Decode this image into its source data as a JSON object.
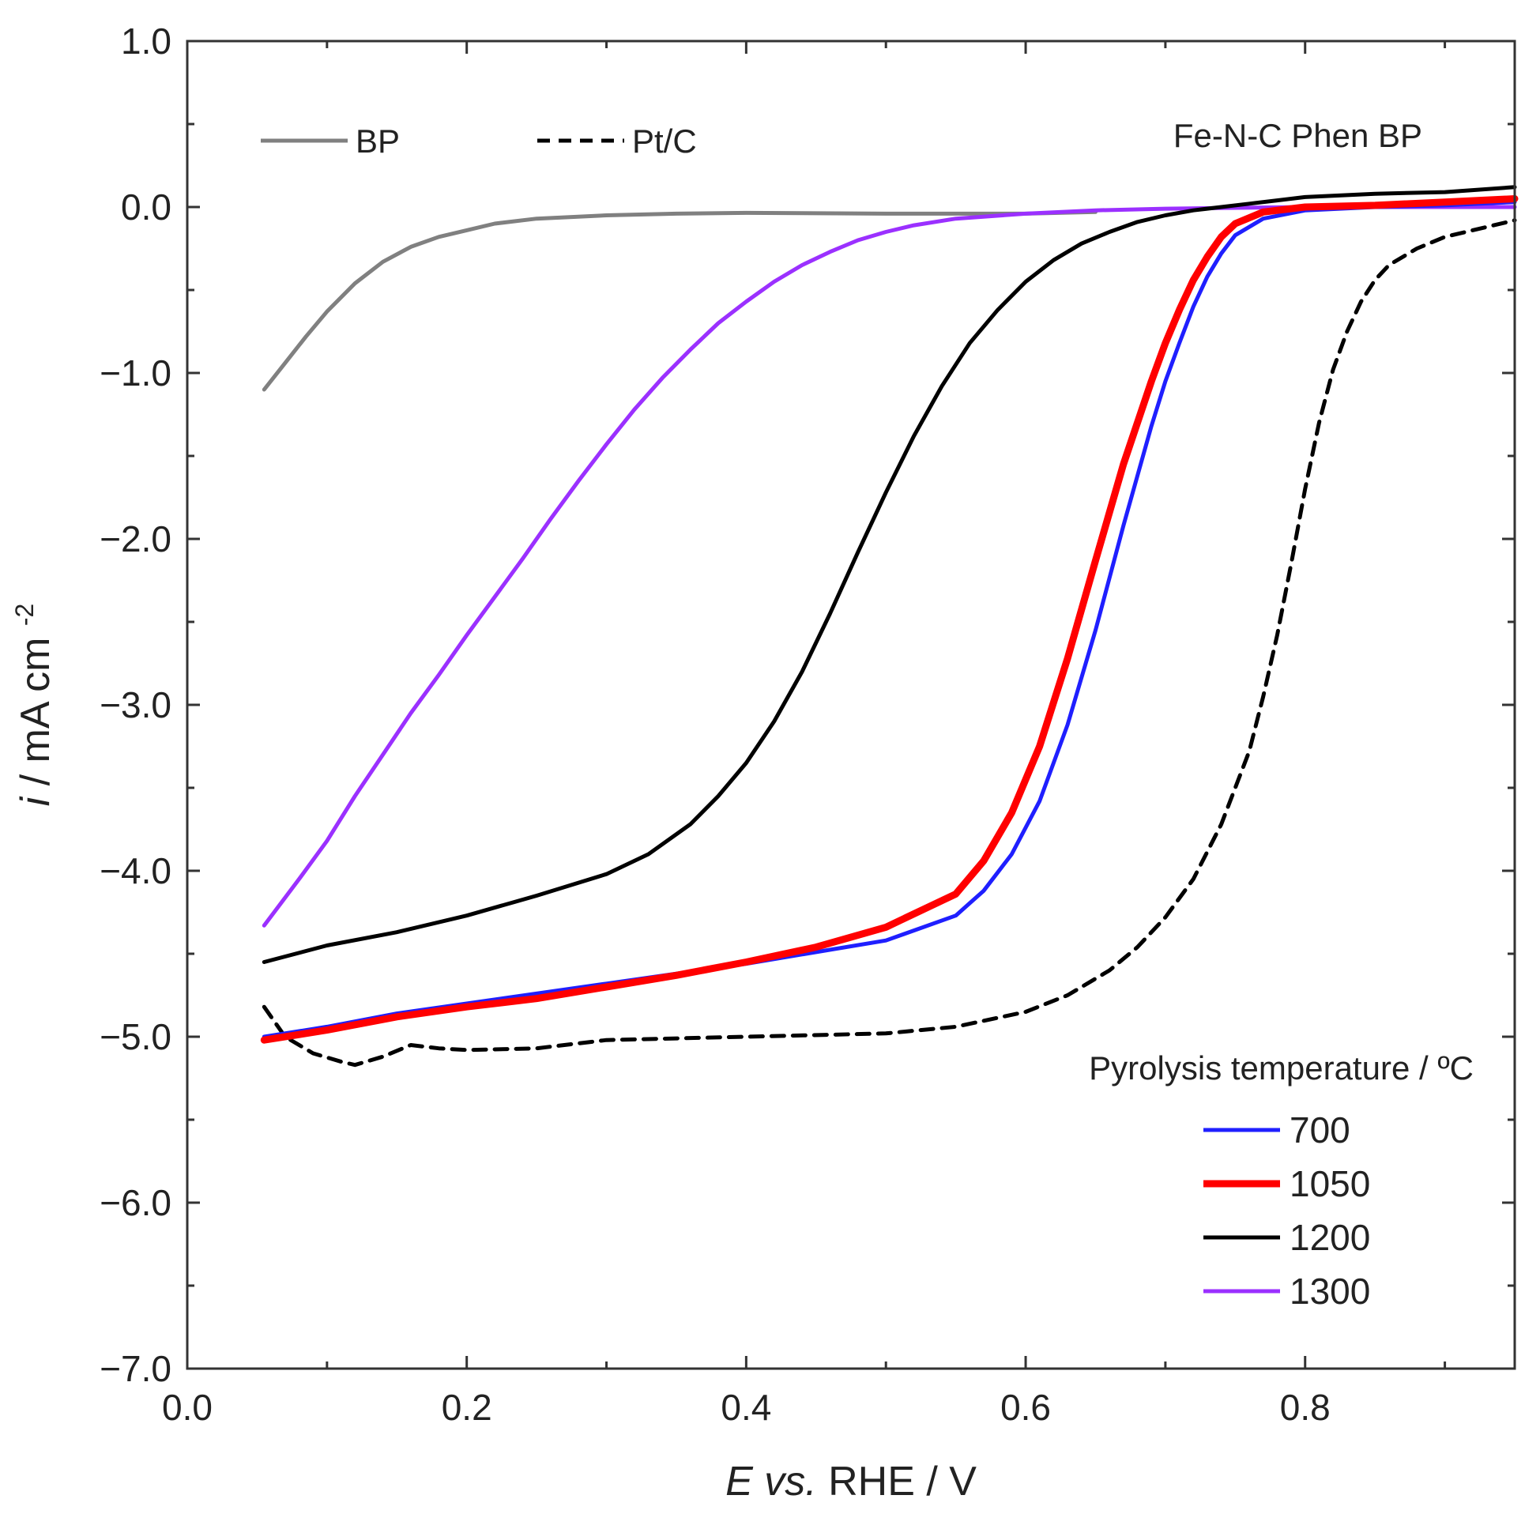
{
  "chart_data": {
    "type": "line",
    "title": "",
    "annotation": "Fe-N-C Phen BP",
    "xlabel": {
      "italic": "E",
      "italic2": "vs.",
      "rest": " RHE / V"
    },
    "ylabel": {
      "italic": "i",
      "rest": " / mA cm",
      "sup": "-2"
    },
    "xlim": [
      0.0,
      0.95
    ],
    "ylim": [
      -7.0,
      1.0
    ],
    "x_ticks": [
      {
        "value": 0.0,
        "label": "0.0"
      },
      {
        "value": 0.2,
        "label": "0.2"
      },
      {
        "value": 0.4,
        "label": "0.4"
      },
      {
        "value": 0.6,
        "label": "0.6"
      },
      {
        "value": 0.8,
        "label": "0.8"
      }
    ],
    "y_ticks": [
      {
        "value": 1.0,
        "label": "1.0"
      },
      {
        "value": 0.0,
        "label": "0.0"
      },
      {
        "value": -1.0,
        "label": "−1.0"
      },
      {
        "value": -2.0,
        "label": "−2.0"
      },
      {
        "value": -3.0,
        "label": "−3.0"
      },
      {
        "value": -4.0,
        "label": "−4.0"
      },
      {
        "value": -5.0,
        "label": "−5.0"
      },
      {
        "value": -6.0,
        "label": "−6.0"
      },
      {
        "value": -7.0,
        "label": "−7.0"
      }
    ],
    "reference_legend": [
      {
        "label": "BP",
        "series": "BP"
      },
      {
        "label": "Pt/C",
        "series": "Pt/C"
      }
    ],
    "legend_title": "Pyrolysis temperature / ºC",
    "legend": [
      {
        "label": "700",
        "series": "700"
      },
      {
        "label": "1050",
        "series": "1050"
      },
      {
        "label": "1200",
        "series": "1200"
      },
      {
        "label": "1300",
        "series": "1300"
      }
    ],
    "series": [
      {
        "name": "BP",
        "color": "#808080",
        "dash": "solid",
        "width": "medium",
        "x": [
          0.055,
          0.07,
          0.085,
          0.1,
          0.12,
          0.14,
          0.16,
          0.18,
          0.2,
          0.22,
          0.25,
          0.3,
          0.35,
          0.4,
          0.5,
          0.6,
          0.65
        ],
        "y": [
          -1.1,
          -0.94,
          -0.78,
          -0.63,
          -0.46,
          -0.33,
          -0.24,
          -0.18,
          -0.14,
          -0.1,
          -0.07,
          -0.05,
          -0.04,
          -0.035,
          -0.04,
          -0.04,
          -0.03
        ]
      },
      {
        "name": "Pt/C",
        "color": "#000000",
        "dash": "dashed",
        "width": "medium",
        "x": [
          0.055,
          0.07,
          0.09,
          0.11,
          0.12,
          0.14,
          0.16,
          0.18,
          0.2,
          0.25,
          0.3,
          0.4,
          0.5,
          0.55,
          0.6,
          0.63,
          0.66,
          0.68,
          0.7,
          0.72,
          0.74,
          0.76,
          0.77,
          0.78,
          0.79,
          0.8,
          0.81,
          0.82,
          0.83,
          0.84,
          0.85,
          0.86,
          0.88,
          0.9,
          0.95
        ],
        "y": [
          -4.82,
          -5.0,
          -5.1,
          -5.15,
          -5.17,
          -5.12,
          -5.05,
          -5.07,
          -5.08,
          -5.07,
          -5.02,
          -5.0,
          -4.98,
          -4.94,
          -4.85,
          -4.75,
          -4.6,
          -4.46,
          -4.28,
          -4.05,
          -3.72,
          -3.28,
          -2.95,
          -2.58,
          -2.15,
          -1.7,
          -1.3,
          -0.98,
          -0.75,
          -0.57,
          -0.44,
          -0.35,
          -0.25,
          -0.18,
          -0.08
        ]
      },
      {
        "name": "700",
        "color": "#1f1fff",
        "dash": "solid",
        "width": "medium",
        "x": [
          0.055,
          0.1,
          0.15,
          0.2,
          0.25,
          0.3,
          0.35,
          0.4,
          0.45,
          0.5,
          0.55,
          0.57,
          0.59,
          0.61,
          0.63,
          0.65,
          0.67,
          0.69,
          0.7,
          0.71,
          0.72,
          0.73,
          0.74,
          0.75,
          0.77,
          0.8,
          0.85,
          0.9,
          0.95
        ],
        "y": [
          -5.0,
          -4.94,
          -4.86,
          -4.8,
          -4.74,
          -4.68,
          -4.62,
          -4.56,
          -4.49,
          -4.42,
          -4.27,
          -4.12,
          -3.9,
          -3.58,
          -3.12,
          -2.55,
          -1.92,
          -1.32,
          -1.05,
          -0.82,
          -0.6,
          -0.42,
          -0.28,
          -0.17,
          -0.07,
          -0.02,
          0.0,
          0.01,
          0.03
        ]
      },
      {
        "name": "1050",
        "color": "#ff0000",
        "dash": "solid",
        "width": "thick",
        "x": [
          0.055,
          0.1,
          0.15,
          0.2,
          0.25,
          0.3,
          0.35,
          0.4,
          0.45,
          0.5,
          0.55,
          0.57,
          0.59,
          0.61,
          0.63,
          0.65,
          0.67,
          0.69,
          0.7,
          0.71,
          0.72,
          0.73,
          0.74,
          0.75,
          0.77,
          0.8,
          0.85,
          0.9,
          0.95
        ],
        "y": [
          -5.02,
          -4.96,
          -4.88,
          -4.82,
          -4.77,
          -4.7,
          -4.63,
          -4.55,
          -4.46,
          -4.34,
          -4.14,
          -3.94,
          -3.65,
          -3.25,
          -2.72,
          -2.13,
          -1.55,
          -1.05,
          -0.82,
          -0.62,
          -0.44,
          -0.3,
          -0.18,
          -0.1,
          -0.03,
          0.0,
          0.01,
          0.03,
          0.05
        ]
      },
      {
        "name": "1200",
        "color": "#000000",
        "dash": "solid",
        "width": "medium",
        "x": [
          0.055,
          0.1,
          0.15,
          0.2,
          0.25,
          0.3,
          0.33,
          0.36,
          0.38,
          0.4,
          0.42,
          0.44,
          0.46,
          0.48,
          0.5,
          0.52,
          0.54,
          0.56,
          0.58,
          0.6,
          0.62,
          0.64,
          0.66,
          0.68,
          0.7,
          0.72,
          0.74,
          0.76,
          0.78,
          0.8,
          0.85,
          0.9,
          0.95
        ],
        "y": [
          -4.55,
          -4.45,
          -4.37,
          -4.27,
          -4.15,
          -4.02,
          -3.9,
          -3.72,
          -3.55,
          -3.35,
          -3.1,
          -2.8,
          -2.45,
          -2.08,
          -1.72,
          -1.38,
          -1.08,
          -0.82,
          -0.62,
          -0.45,
          -0.32,
          -0.22,
          -0.15,
          -0.09,
          -0.05,
          -0.02,
          0.0,
          0.02,
          0.04,
          0.06,
          0.08,
          0.09,
          0.12
        ]
      },
      {
        "name": "1300",
        "color": "#9b30ff",
        "dash": "solid",
        "width": "medium",
        "x": [
          0.055,
          0.08,
          0.1,
          0.12,
          0.14,
          0.16,
          0.18,
          0.2,
          0.22,
          0.24,
          0.26,
          0.28,
          0.3,
          0.32,
          0.34,
          0.36,
          0.38,
          0.4,
          0.42,
          0.44,
          0.46,
          0.48,
          0.5,
          0.52,
          0.55,
          0.6,
          0.65,
          0.7,
          0.8,
          0.9,
          0.95
        ],
        "y": [
          -4.33,
          -4.05,
          -3.82,
          -3.55,
          -3.3,
          -3.05,
          -2.82,
          -2.58,
          -2.35,
          -2.12,
          -1.88,
          -1.65,
          -1.43,
          -1.22,
          -1.03,
          -0.86,
          -0.7,
          -0.57,
          -0.45,
          -0.35,
          -0.27,
          -0.2,
          -0.15,
          -0.11,
          -0.07,
          -0.04,
          -0.02,
          -0.01,
          0.0,
          0.0,
          0.0
        ]
      }
    ]
  }
}
